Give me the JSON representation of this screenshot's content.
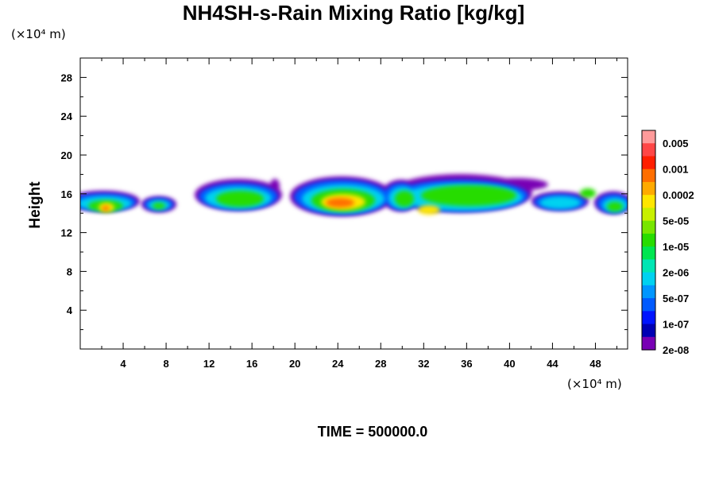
{
  "chart_data": {
    "type": "heatmap",
    "title": "NH4SH-s-Rain Mixing Ratio [kg/kg]",
    "xlabel": "",
    "ylabel": "Height",
    "x_unit": "(×10⁴ m)",
    "y_unit": "(×10⁴ m)",
    "xlim": [
      0,
      51
    ],
    "ylim": [
      0,
      30
    ],
    "x_ticks": [
      4,
      8,
      12,
      16,
      20,
      24,
      28,
      32,
      36,
      40,
      44,
      48
    ],
    "y_ticks": [
      4,
      8,
      12,
      16,
      20,
      24,
      28
    ],
    "grid": false,
    "legend": {
      "placement": "right",
      "labels": [
        "0.005",
        "0.001",
        "0.0002",
        "5e-05",
        "1e-05",
        "2e-06",
        "5e-07",
        "1e-07",
        "2e-08"
      ],
      "colors": [
        "#ff9a9a",
        "#ff4646",
        "#ff1e00",
        "#ff6e00",
        "#ffaa00",
        "#ffe600",
        "#c8f000",
        "#78e600",
        "#28dc00",
        "#00e650",
        "#00e6b4",
        "#00d2f0",
        "#0096ff",
        "#005aff",
        "#0014ff",
        "#0000b4",
        "#7800b4"
      ]
    },
    "cloud_layer": {
      "base_height": 13.2,
      "top_height": 17.8,
      "max_level": "0.001",
      "max_region_x": [
        21.5,
        25.5
      ],
      "max_region_height": [
        14.5,
        15.5
      ]
    },
    "time_label": "TIME = 500000.0"
  }
}
